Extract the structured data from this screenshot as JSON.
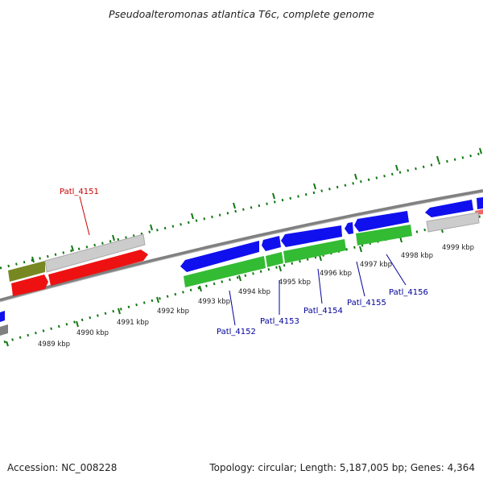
{
  "title": "Pseudoalteromonas atlantica T6c, complete genome",
  "footer": {
    "accession": "Accession: NC_008228",
    "info": "Topology: circular; Length: 5,187,005 bp; Genes: 4,364"
  },
  "colors": {
    "plus_strand_gene": "#1010ee",
    "minus_strand_gene": "#33bb33",
    "rna": "#ee1111",
    "pseudo": "#c8c8c8",
    "other": "#778822",
    "backbone": "#808080",
    "ruler": "#117711",
    "plus_label": "#000099",
    "minus_label": "#cc0000"
  },
  "ruler_labels": [
    "4989 kbp",
    "4990 kbp",
    "4991 kbp",
    "4992 kbp",
    "4993 kbp",
    "4994 kbp",
    "4995 kbp",
    "4996 kbp",
    "4997 kbp",
    "4998 kbp",
    "4999 kbp"
  ],
  "gene_labels": [
    {
      "id": "g4151",
      "text": "Patl_4151",
      "strand": "minus"
    },
    {
      "id": "g4152",
      "text": "Patl_4152",
      "strand": "plus"
    },
    {
      "id": "g4153",
      "text": "Patl_4153",
      "strand": "plus"
    },
    {
      "id": "g4154",
      "text": "Patl_4154",
      "strand": "plus"
    },
    {
      "id": "g4155",
      "text": "Patl_4155",
      "strand": "plus"
    },
    {
      "id": "g4156",
      "text": "Patl_4156",
      "strand": "plus"
    }
  ]
}
